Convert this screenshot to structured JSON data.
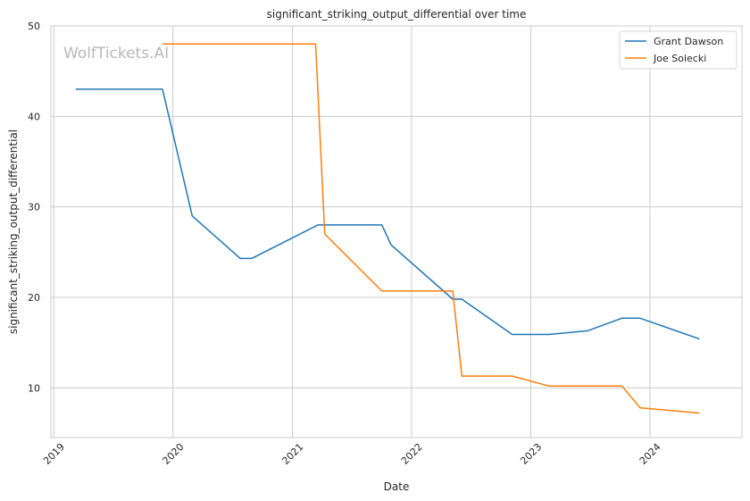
{
  "chart_data": {
    "type": "line",
    "title": "significant_striking_output_differential over time",
    "xlabel": "Date",
    "ylabel": "significant_striking_output_differential",
    "x_ticks": [
      "2019",
      "2020",
      "2021",
      "2022",
      "2023",
      "2024"
    ],
    "y_ticks": [
      10,
      20,
      30,
      40,
      50
    ],
    "xlim": [
      "2018-12-23",
      "2024-10-09"
    ],
    "ylim": [
      4.5,
      50
    ],
    "grid": true,
    "legend_position": "top-right",
    "watermark": "WolfTickets.AI",
    "series": [
      {
        "name": "Grant Dawson",
        "color": "#1f77b4",
        "points": [
          [
            "2019-03-09",
            43.0
          ],
          [
            "2019-11-30",
            43.0
          ],
          [
            "2020-02-29",
            29.0
          ],
          [
            "2020-07-25",
            24.3
          ],
          [
            "2020-08-29",
            24.3
          ],
          [
            "2021-03-20",
            28.0
          ],
          [
            "2021-10-02",
            28.0
          ],
          [
            "2021-10-30",
            25.8
          ],
          [
            "2022-05-07",
            19.8
          ],
          [
            "2022-06-04",
            19.8
          ],
          [
            "2022-11-05",
            15.9
          ],
          [
            "2023-02-25",
            15.9
          ],
          [
            "2023-06-24",
            16.3
          ],
          [
            "2023-10-07",
            17.7
          ],
          [
            "2023-12-02",
            17.7
          ],
          [
            "2024-06-01",
            15.4
          ]
        ]
      },
      {
        "name": "Joe Solecki",
        "color": "#ff7f0e",
        "points": [
          [
            "2019-11-30",
            48.0
          ],
          [
            "2021-03-13",
            48.0
          ],
          [
            "2021-04-10",
            27.0
          ],
          [
            "2021-10-02",
            20.7
          ],
          [
            "2022-05-07",
            20.7
          ],
          [
            "2022-06-04",
            11.3
          ],
          [
            "2022-11-05",
            11.3
          ],
          [
            "2023-02-25",
            10.2
          ],
          [
            "2023-10-07",
            10.2
          ],
          [
            "2023-12-02",
            7.8
          ],
          [
            "2024-06-01",
            7.2
          ]
        ]
      }
    ]
  }
}
